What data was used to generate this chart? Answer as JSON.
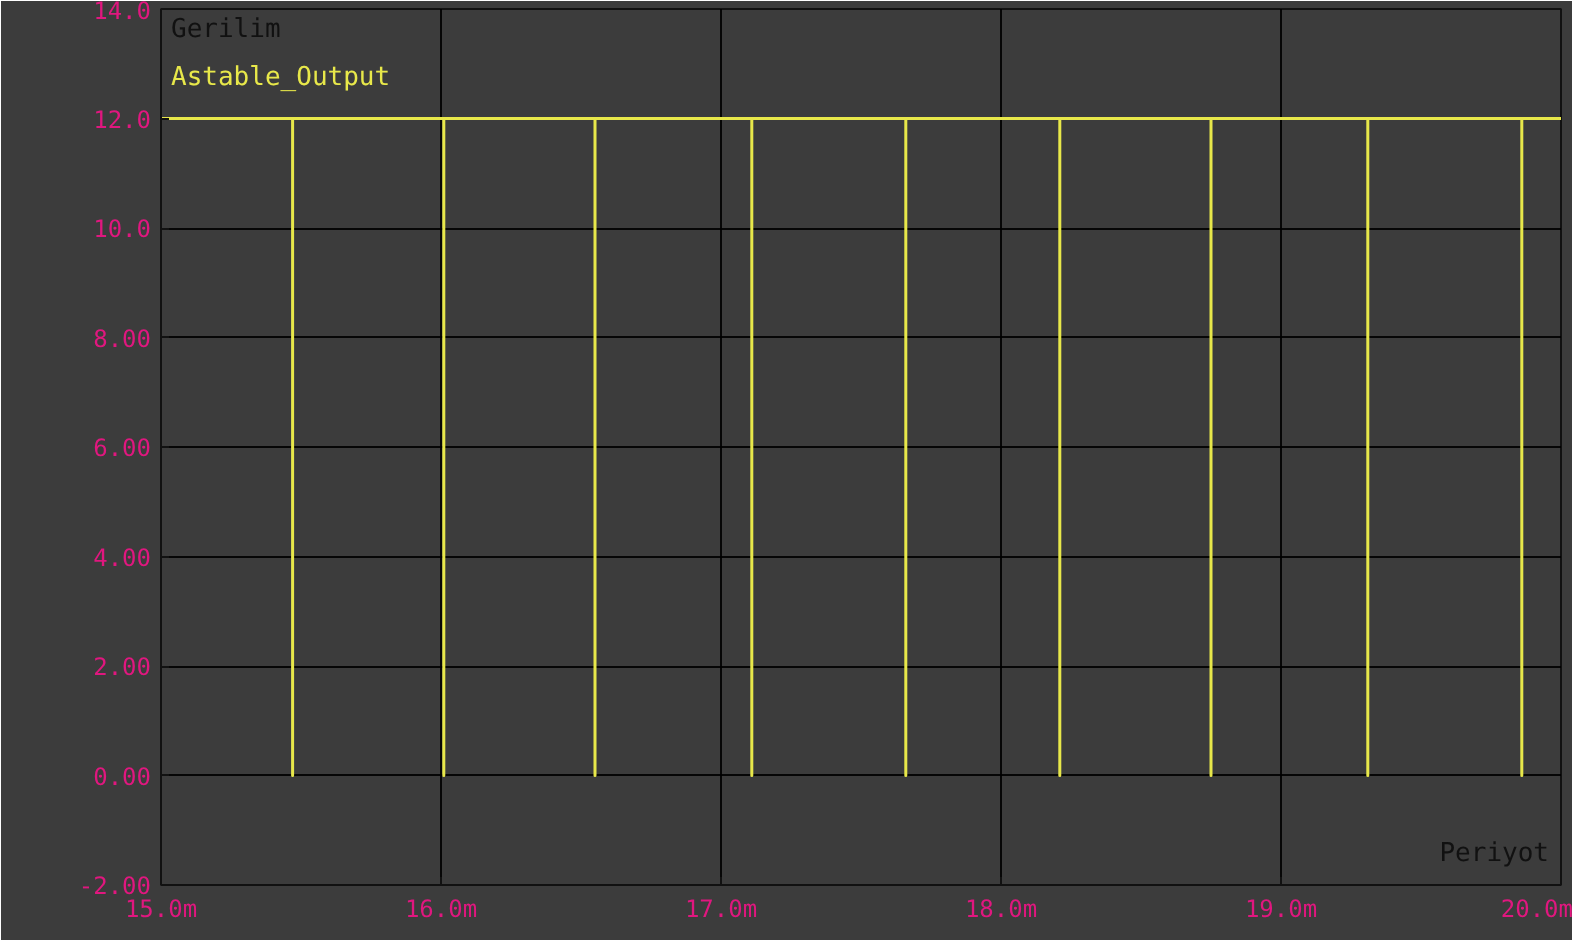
{
  "chart_data": {
    "type": "line",
    "xlabel": "Periyot",
    "ylabel": "Gerilim",
    "x": [
      15.0,
      15.47,
      15.47,
      15.47,
      16.01,
      16.01,
      16.01,
      16.55,
      16.55,
      16.55,
      17.11,
      17.11,
      17.11,
      17.66,
      17.66,
      17.66,
      18.21,
      18.21,
      18.21,
      18.75,
      18.75,
      18.75,
      19.31,
      19.31,
      19.31,
      19.86,
      19.86,
      19.86,
      20.0
    ],
    "series": [
      {
        "name": "Astable_Output",
        "color": "#e8e84a",
        "values": [
          12,
          12,
          0,
          12,
          12,
          0,
          12,
          12,
          0,
          12,
          12,
          0,
          12,
          12,
          0,
          12,
          12,
          0,
          12,
          12,
          0,
          12,
          12,
          0,
          12,
          12,
          0,
          12,
          12
        ]
      }
    ],
    "xlim": [
      15.0,
      20.0
    ],
    "ylim": [
      -2,
      14
    ],
    "xticks": [
      {
        "value": 15,
        "label": "15.0m"
      },
      {
        "value": 16,
        "label": "16.0m"
      },
      {
        "value": 17,
        "label": "17.0m"
      },
      {
        "value": 18,
        "label": "18.0m"
      },
      {
        "value": 19,
        "label": "19.0m"
      },
      {
        "value": 20,
        "label": "20.0m"
      }
    ],
    "yticks": [
      {
        "value": -2,
        "label": "-2.00"
      },
      {
        "value": 0,
        "label": "0.00"
      },
      {
        "value": 2,
        "label": "2.00"
      },
      {
        "value": 4,
        "label": "4.00"
      },
      {
        "value": 6,
        "label": "6.00"
      },
      {
        "value": 8,
        "label": "8.00"
      },
      {
        "value": 10,
        "label": "10.0"
      },
      {
        "value": 12,
        "label": "12.0"
      },
      {
        "value": 14,
        "label": "14.0"
      }
    ],
    "grid": true,
    "line_style": "solid",
    "marker": "none"
  }
}
